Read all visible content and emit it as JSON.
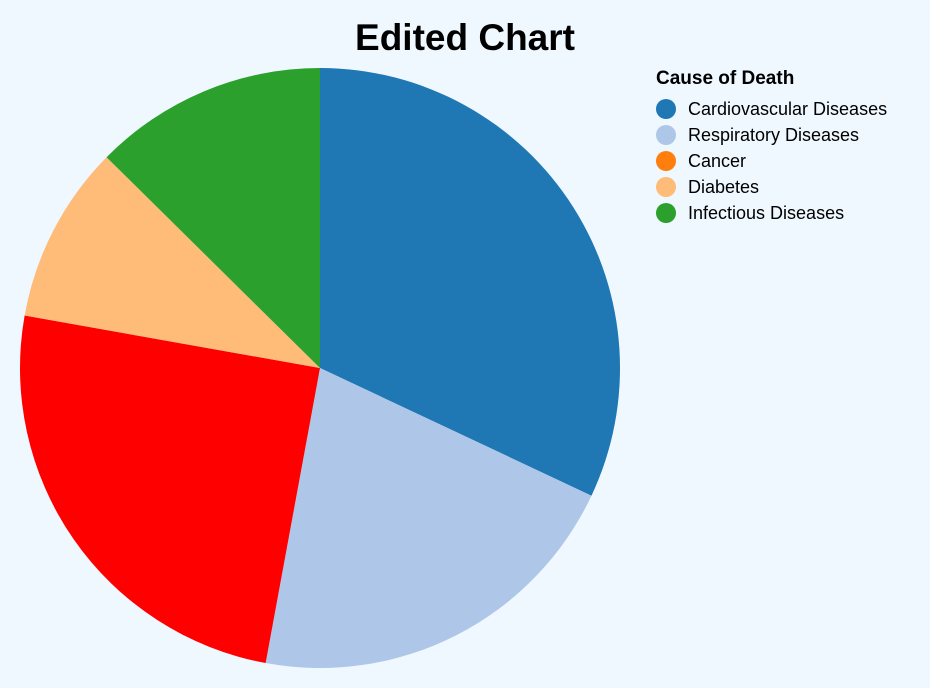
{
  "chart_data": {
    "type": "pie",
    "title": "Edited Chart",
    "legend_title": "Cause of Death",
    "legend_position": "top-right",
    "categories": [
      "Cardiovascular Diseases",
      "Respiratory Diseases",
      "Cancer",
      "Diabetes",
      "Infectious Diseases"
    ],
    "values": [
      32.0,
      20.9,
      24.9,
      9.6,
      12.6
    ],
    "slice_colors": [
      "#1f77b4",
      "#aec7e8",
      "#ff0000",
      "#ffbb78",
      "#2ca02c"
    ],
    "legend_colors": [
      "#1f77b4",
      "#aec7e8",
      "#ff7f0e",
      "#ffbb78",
      "#2ca02c"
    ]
  }
}
